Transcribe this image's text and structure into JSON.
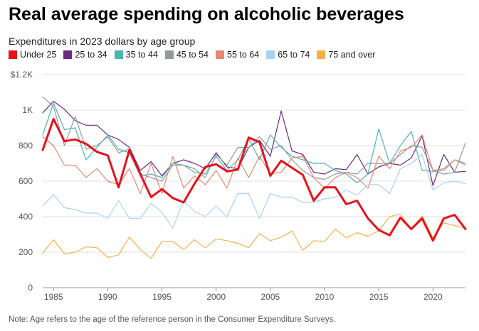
{
  "chart_data": {
    "type": "line",
    "title": "Real average spending on alcoholic beverages",
    "subtitle": "Expenditures in 2023 dollars by age group",
    "xlabel": "",
    "ylabel": "",
    "xlim": [
      1984,
      2023
    ],
    "ylim": [
      0,
      1200
    ],
    "grid": true,
    "legend_position": "top-left",
    "x_ticks": [
      "1985",
      "1990",
      "1995",
      "2000",
      "2005",
      "2010",
      "2015",
      "2020"
    ],
    "x_tick_values": [
      1985,
      1990,
      1995,
      2000,
      2005,
      2010,
      2015,
      2020
    ],
    "y_ticks": [
      "0",
      "200",
      "400",
      "600",
      "800",
      "1K",
      "$1.2K"
    ],
    "y_tick_values": [
      0,
      200,
      400,
      600,
      800,
      1000,
      1200
    ],
    "x": [
      1984,
      1985,
      1986,
      1987,
      1988,
      1989,
      1990,
      1991,
      1992,
      1993,
      1994,
      1995,
      1996,
      1997,
      1998,
      1999,
      2000,
      2001,
      2002,
      2003,
      2004,
      2005,
      2006,
      2007,
      2008,
      2009,
      2010,
      2011,
      2012,
      2013,
      2014,
      2015,
      2016,
      2017,
      2018,
      2019,
      2020,
      2021,
      2022,
      2023
    ],
    "series": [
      {
        "name": "Under 25",
        "color": "#e8111b",
        "width": 3,
        "values": [
          775,
          950,
          825,
          835,
          810,
          765,
          745,
          565,
          775,
          640,
          510,
          555,
          505,
          480,
          585,
          680,
          695,
          655,
          665,
          845,
          820,
          630,
          715,
          675,
          635,
          490,
          565,
          565,
          470,
          490,
          390,
          325,
          295,
          395,
          330,
          390,
          265,
          390,
          410,
          330
        ]
      },
      {
        "name": "25 to 34",
        "color": "#6a2a82",
        "width": 1.2,
        "values": [
          985,
          1050,
          1005,
          940,
          915,
          915,
          860,
          835,
          790,
          660,
          710,
          630,
          700,
          720,
          700,
          670,
          760,
          680,
          670,
          790,
          830,
          740,
          995,
          770,
          750,
          650,
          640,
          670,
          665,
          750,
          640,
          680,
          700,
          690,
          730,
          855,
          575,
          750,
          650,
          655
        ]
      },
      {
        "name": "35 to 44",
        "color": "#4cb5b0",
        "width": 1.2,
        "values": [
          860,
          1040,
          890,
          900,
          720,
          790,
          860,
          780,
          760,
          630,
          640,
          620,
          700,
          690,
          650,
          640,
          740,
          660,
          720,
          840,
          720,
          860,
          790,
          740,
          720,
          700,
          700,
          660,
          640,
          590,
          640,
          895,
          700,
          800,
          880,
          660,
          655,
          660,
          720,
          700
        ]
      },
      {
        "name": "45 to 54",
        "color": "#8f9c9c",
        "width": 1.2,
        "values": [
          1075,
          1020,
          800,
          965,
          780,
          800,
          850,
          760,
          780,
          640,
          620,
          600,
          690,
          690,
          670,
          620,
          750,
          690,
          790,
          790,
          850,
          780,
          800,
          720,
          660,
          620,
          610,
          640,
          650,
          640,
          700,
          700,
          700,
          750,
          800,
          790,
          660,
          640,
          650,
          815
        ]
      },
      {
        "name": "55 to 64",
        "color": "#e58872",
        "width": 1.2,
        "values": [
          850,
          800,
          690,
          690,
          620,
          670,
          600,
          580,
          670,
          530,
          700,
          530,
          740,
          560,
          630,
          580,
          660,
          560,
          730,
          620,
          740,
          640,
          650,
          730,
          740,
          620,
          560,
          620,
          650,
          620,
          560,
          740,
          670,
          770,
          790,
          860,
          660,
          670,
          720,
          690
        ]
      },
      {
        "name": "65 to 74",
        "color": "#a9d1f3",
        "width": 1.2,
        "values": [
          460,
          525,
          450,
          440,
          420,
          420,
          390,
          490,
          390,
          390,
          475,
          425,
          335,
          490,
          430,
          400,
          460,
          400,
          530,
          530,
          390,
          530,
          510,
          510,
          480,
          480,
          500,
          510,
          550,
          520,
          580,
          580,
          530,
          670,
          700,
          750,
          550,
          590,
          600,
          585
        ]
      },
      {
        "name": "75 and over",
        "color": "#f5b04a",
        "width": 1.2,
        "values": [
          195,
          270,
          190,
          200,
          230,
          225,
          170,
          185,
          285,
          215,
          165,
          260,
          260,
          215,
          270,
          225,
          275,
          265,
          250,
          225,
          305,
          265,
          285,
          320,
          210,
          265,
          260,
          330,
          280,
          310,
          290,
          320,
          400,
          415,
          330,
          405,
          280,
          365,
          350,
          335
        ]
      }
    ]
  },
  "note": "Note: Age refers to the age of the reference person in the Consumer Expenditure Surveys."
}
